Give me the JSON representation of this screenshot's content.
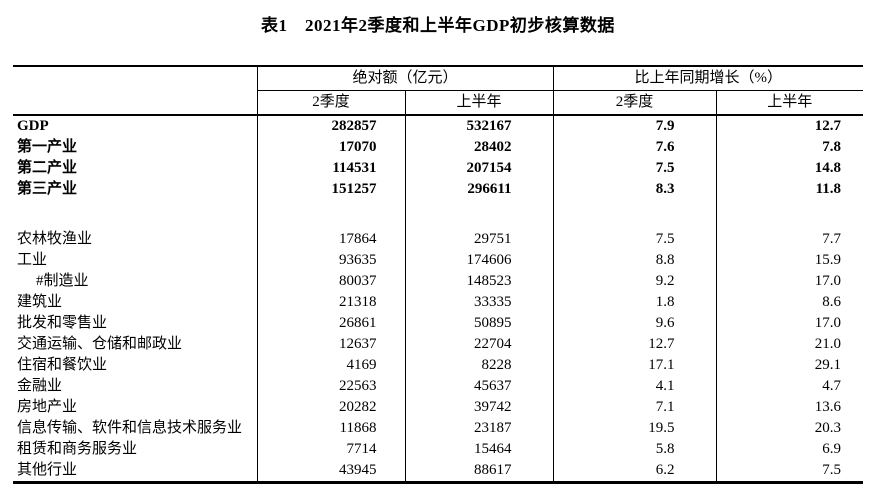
{
  "title": "表1　2021年2季度和上半年GDP初步核算数据",
  "colors": {
    "background": "#ffffff",
    "text": "#000000",
    "border": "#000000"
  },
  "table": {
    "group_headers": [
      "绝对额（亿元）",
      "比上年同期增长（%）"
    ],
    "sub_headers": [
      "2季度",
      "上半年",
      "2季度",
      "上半年"
    ],
    "rows": [
      {
        "label": "GDP",
        "abs_q2": "282857",
        "abs_h1": "532167",
        "growth_q2": "7.9",
        "growth_h1": "12.7",
        "bold": true
      },
      {
        "label": "第一产业",
        "abs_q2": "17070",
        "abs_h1": "28402",
        "growth_q2": "7.6",
        "growth_h1": "7.8",
        "bold": true
      },
      {
        "label": "第二产业",
        "abs_q2": "114531",
        "abs_h1": "207154",
        "growth_q2": "7.5",
        "growth_h1": "14.8",
        "bold": true
      },
      {
        "label": "第三产业",
        "abs_q2": "151257",
        "abs_h1": "296611",
        "growth_q2": "8.3",
        "growth_h1": "11.8",
        "bold": true
      },
      {
        "spacer": true
      },
      {
        "label": "农林牧渔业",
        "abs_q2": "17864",
        "abs_h1": "29751",
        "growth_q2": "7.5",
        "growth_h1": "7.7"
      },
      {
        "label": "工业",
        "abs_q2": "93635",
        "abs_h1": "174606",
        "growth_q2": "8.8",
        "growth_h1": "15.9"
      },
      {
        "label": "#制造业",
        "abs_q2": "80037",
        "abs_h1": "148523",
        "growth_q2": "9.2",
        "growth_h1": "17.0",
        "indent": true
      },
      {
        "label": "建筑业",
        "abs_q2": "21318",
        "abs_h1": "33335",
        "growth_q2": "1.8",
        "growth_h1": "8.6"
      },
      {
        "label": "批发和零售业",
        "abs_q2": "26861",
        "abs_h1": "50895",
        "growth_q2": "9.6",
        "growth_h1": "17.0"
      },
      {
        "label": "交通运输、仓储和邮政业",
        "abs_q2": "12637",
        "abs_h1": "22704",
        "growth_q2": "12.7",
        "growth_h1": "21.0"
      },
      {
        "label": "住宿和餐饮业",
        "abs_q2": "4169",
        "abs_h1": "8228",
        "growth_q2": "17.1",
        "growth_h1": "29.1"
      },
      {
        "label": "金融业",
        "abs_q2": "22563",
        "abs_h1": "45637",
        "growth_q2": "4.1",
        "growth_h1": "4.7"
      },
      {
        "label": "房地产业",
        "abs_q2": "20282",
        "abs_h1": "39742",
        "growth_q2": "7.1",
        "growth_h1": "13.6"
      },
      {
        "label": "信息传输、软件和信息技术服务业",
        "abs_q2": "11868",
        "abs_h1": "23187",
        "growth_q2": "19.5",
        "growth_h1": "20.3"
      },
      {
        "label": "租赁和商务服务业",
        "abs_q2": "7714",
        "abs_h1": "15464",
        "growth_q2": "5.8",
        "growth_h1": "6.9"
      },
      {
        "label": "其他行业",
        "abs_q2": "43945",
        "abs_h1": "88617",
        "growth_q2": "6.2",
        "growth_h1": "7.5"
      }
    ]
  }
}
